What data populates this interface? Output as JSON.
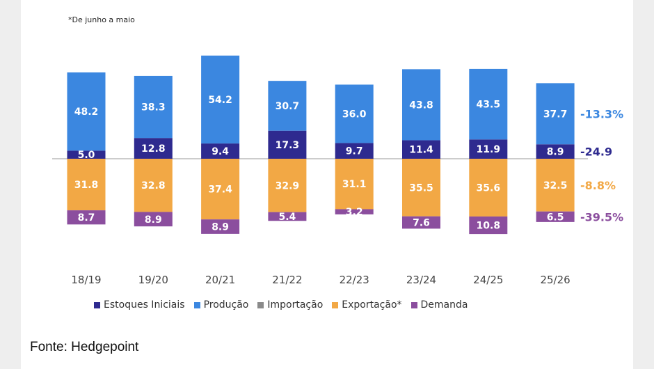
{
  "note": "*De junho a maio",
  "source": "Fonte: Hedgepoint",
  "chart_data": {
    "type": "bar",
    "stacked": true,
    "categories": [
      "18/19",
      "19/20",
      "20/21",
      "21/22",
      "22/23",
      "23/24",
      "24/25",
      "25/26"
    ],
    "series": [
      {
        "name": "Estoques Iniciais",
        "color": "#2e2a8f",
        "direction": "up",
        "values": [
          5.0,
          12.8,
          9.4,
          17.3,
          9.7,
          11.4,
          11.9,
          8.9
        ]
      },
      {
        "name": "Produção",
        "color": "#3b87e0",
        "direction": "up",
        "values": [
          48.2,
          38.3,
          54.2,
          30.7,
          36.0,
          43.8,
          43.5,
          37.7
        ]
      },
      {
        "name": "Importação",
        "color": "#8a8a8a",
        "direction": "up",
        "values": [
          0,
          0,
          0,
          0,
          0,
          0,
          0,
          0
        ]
      },
      {
        "name": "Exportação*",
        "color": "#f2a845",
        "direction": "down",
        "values": [
          31.8,
          32.8,
          37.4,
          32.9,
          31.1,
          35.5,
          35.6,
          32.5
        ]
      },
      {
        "name": "Demanda",
        "color": "#8b4e9e",
        "direction": "down",
        "values": [
          8.7,
          8.9,
          8.9,
          5.4,
          3.2,
          7.6,
          10.8,
          6.5
        ]
      }
    ],
    "value_labels": {
      "Estoques Iniciais": [
        "5.0",
        "12.8",
        "9.4",
        "17.3",
        "9.7",
        "11.4",
        "11.9",
        "8.9"
      ],
      "Produção": [
        "48.2",
        "38.3",
        "54.2",
        "30.7",
        "36.0",
        "43.8",
        "43.5",
        "37.7"
      ],
      "Exportação*": [
        "31.8",
        "32.8",
        "37.4",
        "32.9",
        "31.1",
        "35.5",
        "35.6",
        "32.5"
      ],
      "Demanda": [
        "8.7",
        "8.9",
        "8.9",
        "5.4",
        "3.2",
        "7.6",
        "10.8",
        "6.5"
      ]
    },
    "change_annotations": [
      {
        "series": "Produção",
        "text": "-13.3%",
        "color": "#3b87e0"
      },
      {
        "series": "Estoques Iniciais",
        "text": "-24.9",
        "color": "#2e2a8f"
      },
      {
        "series": "Exportação*",
        "text": "-8.8%",
        "color": "#f2a845"
      },
      {
        "series": "Demanda",
        "text": "-39.5%",
        "color": "#8b4e9e"
      }
    ],
    "baseline_color": "#cccccc"
  }
}
